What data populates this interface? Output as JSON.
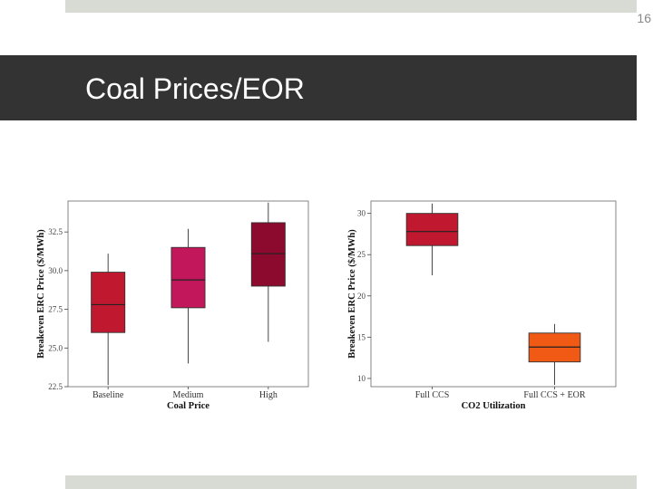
{
  "slide": {
    "number": "16",
    "title": "Coal Prices/EOR"
  },
  "chart_data": [
    {
      "type": "box",
      "xlabel": "Coal Price",
      "ylabel": "Breakeven ERC Price ($/MWh)",
      "ylim": [
        22.5,
        34.5
      ],
      "yticks": [
        22.5,
        25.0,
        27.5,
        30.0,
        32.5
      ],
      "grid": false,
      "categories": [
        "Baseline",
        "Medium",
        "High"
      ],
      "boxes": [
        {
          "category": "Baseline",
          "min": 22.6,
          "q1": 26.0,
          "median": 27.8,
          "q3": 29.9,
          "max": 31.1,
          "color": "#c0192f"
        },
        {
          "category": "Medium",
          "min": 24.0,
          "q1": 27.6,
          "median": 29.4,
          "q3": 31.5,
          "max": 32.7,
          "color": "#c2185b"
        },
        {
          "category": "High",
          "min": 25.4,
          "q1": 29.0,
          "median": 31.1,
          "q3": 33.1,
          "max": 34.4,
          "color": "#8b0a2e"
        }
      ]
    },
    {
      "type": "box",
      "xlabel": "CO2 Utilization",
      "ylabel": "Breakeven ERC Price ($/MWh)",
      "ylim": [
        9.0,
        31.5
      ],
      "yticks": [
        10,
        15,
        20,
        25,
        30
      ],
      "grid": false,
      "categories": [
        "Full CCS",
        "Full CCS + EOR"
      ],
      "boxes": [
        {
          "category": "Full CCS",
          "min": 22.5,
          "q1": 26.1,
          "median": 27.8,
          "q3": 30.0,
          "max": 31.2,
          "color": "#c0192f"
        },
        {
          "category": "Full CCS + EOR",
          "min": 9.2,
          "q1": 12.0,
          "median": 13.8,
          "q3": 15.5,
          "max": 16.6,
          "color": "#f05a15"
        }
      ]
    }
  ]
}
